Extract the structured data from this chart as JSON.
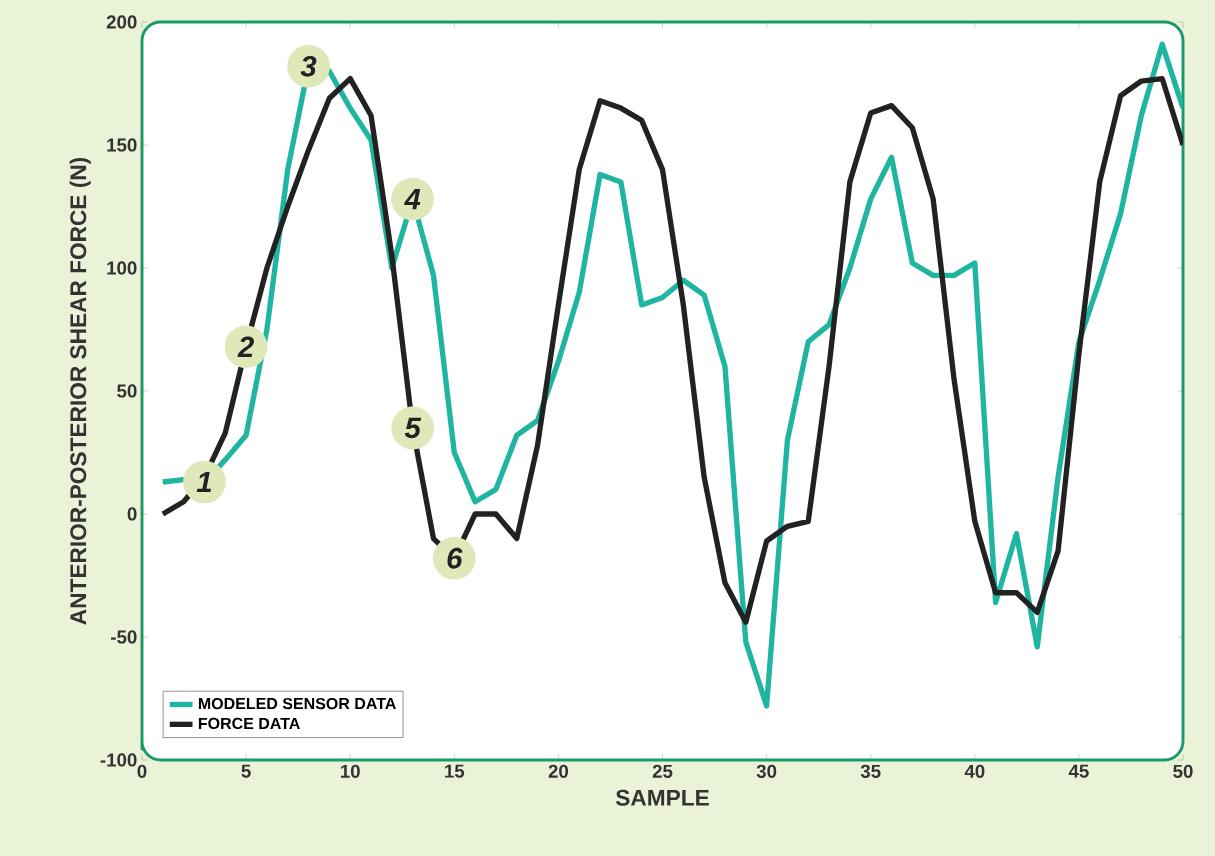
{
  "chart_data": {
    "type": "line",
    "xlabel": "SAMPLE",
    "ylabel": "ANTERIOR-POSTERIOR SHEAR FORCE (N)",
    "x": [
      1,
      2,
      3,
      4,
      5,
      6,
      7,
      8,
      9,
      10,
      11,
      12,
      13,
      14,
      15,
      16,
      17,
      18,
      19,
      20,
      21,
      22,
      23,
      24,
      25,
      26,
      27,
      28,
      29,
      30,
      31,
      32,
      33,
      34,
      35,
      36,
      37,
      38,
      39,
      40,
      41,
      42,
      43,
      44,
      45,
      46,
      47,
      48,
      49,
      50
    ],
    "series": [
      {
        "name": "MODELED SENSOR DATA",
        "color": "#1fb5a0",
        "values": [
          13,
          14,
          13,
          22,
          32,
          75,
          140,
          182,
          180,
          165,
          152,
          100,
          128,
          97,
          25,
          5,
          10,
          32,
          38,
          62,
          90,
          138,
          135,
          85,
          88,
          95,
          89,
          60,
          -52,
          -78,
          30,
          70,
          77,
          100,
          128,
          145,
          102,
          97,
          97,
          102,
          -36,
          -8,
          -54,
          15,
          70,
          95,
          122,
          162,
          191,
          165
        ]
      },
      {
        "name": "FORCE DATA",
        "color": "#222222",
        "values": [
          0,
          5,
          15,
          33,
          68,
          100,
          125,
          148,
          169,
          177,
          162,
          105,
          35,
          -10,
          -18,
          0,
          0,
          -10,
          28,
          85,
          140,
          168,
          165,
          160,
          140,
          85,
          15,
          -28,
          -44,
          -11,
          -5,
          -3,
          60,
          135,
          163,
          166,
          157,
          128,
          55,
          -3,
          -32,
          -32,
          -40,
          -15,
          65,
          135,
          170,
          176,
          177,
          150
        ]
      }
    ],
    "annotations": [
      {
        "text": "1",
        "x": 3,
        "y": 13
      },
      {
        "text": "2",
        "x": 5,
        "y": 68
      },
      {
        "text": "3",
        "x": 8,
        "y": 182
      },
      {
        "text": "4",
        "x": 13,
        "y": 128
      },
      {
        "text": "5",
        "x": 13,
        "y": 35
      },
      {
        "text": "6",
        "x": 15,
        "y": -18
      }
    ],
    "xlim": [
      0,
      50
    ],
    "xticks": [
      0,
      5,
      10,
      15,
      20,
      25,
      30,
      35,
      40,
      45,
      50
    ],
    "ylim": [
      -100,
      200
    ],
    "yticks": [
      -100,
      -50,
      0,
      50,
      100,
      150,
      200
    ],
    "legend": "bottom left",
    "grid": false,
    "marker": "none",
    "line_style": "solid"
  }
}
